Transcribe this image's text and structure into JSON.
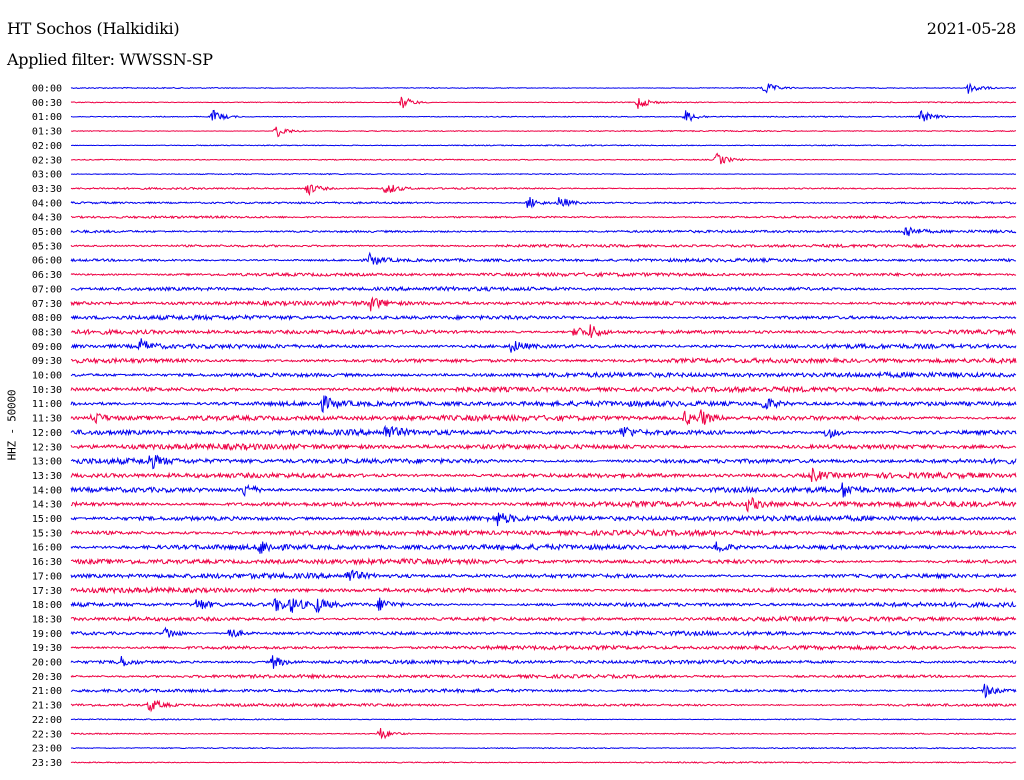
{
  "header": {
    "station": "HT Sochos (Halkidiki)",
    "date": "2021-05-28",
    "filter": "Applied filter: WWSSN-SP",
    "channel": "HHZ - 50000"
  },
  "colors": {
    "trace_a": "#0000ee",
    "trace_b": "#ee0044",
    "background": "#ffffff"
  },
  "chart_data": {
    "type": "line",
    "subtype": "helicorder",
    "ylabel": "HHZ - 50000",
    "row_interval_minutes": 30,
    "row_colors_alternate": [
      "blue",
      "red"
    ],
    "tick_labels": [
      "00:00",
      "00:30",
      "01:00",
      "01:30",
      "02:00",
      "02:30",
      "03:00",
      "03:30",
      "04:00",
      "04:30",
      "05:00",
      "05:30",
      "06:00",
      "06:30",
      "07:00",
      "07:30",
      "08:00",
      "08:30",
      "09:00",
      "09:30",
      "10:00",
      "10:30",
      "11:00",
      "11:30",
      "12:00",
      "12:30",
      "13:00",
      "13:30",
      "14:00",
      "14:30",
      "15:00",
      "15:30",
      "16:00",
      "16:30",
      "17:00",
      "17:30",
      "18:00",
      "18:30",
      "19:00",
      "19:30",
      "20:00",
      "20:30",
      "21:00",
      "21:30",
      "22:00",
      "22:30",
      "23:00",
      "23:30"
    ],
    "events_minute_of_row": {
      "00:00": [
        22,
        28.5
      ],
      "00:30": [
        10.5,
        18
      ],
      "01:00": [
        4.5,
        19.5,
        27
      ],
      "01:30": [
        6.5
      ],
      "02:30": [
        20.5
      ],
      "03:30": [
        7.5,
        10
      ],
      "04:00": [
        14.5,
        15.5
      ],
      "05:00": [
        26.5
      ],
      "06:00": [
        9.5
      ],
      "07:30": [
        9.5
      ],
      "08:30": [
        16,
        16.5
      ],
      "09:00": [
        2.2,
        14
      ],
      "11:00": [
        8,
        22
      ],
      "11:30": [
        0.7,
        19.5,
        20
      ],
      "12:00": [
        10,
        17.5,
        24
      ],
      "13:00": [
        2.5
      ],
      "13:30": [
        23.5
      ],
      "14:00": [
        5.5,
        24.5
      ],
      "14:30": [
        21.5
      ],
      "15:00": [
        13.5
      ],
      "16:00": [
        6,
        20.5
      ],
      "17:00": [
        8.8
      ],
      "18:00": [
        4,
        6.5,
        7,
        7.8,
        9.8
      ],
      "19:00": [
        3,
        5
      ],
      "20:00": [
        1.5,
        6.4
      ],
      "21:00": [
        29
      ],
      "21:30": [
        2.5
      ],
      "22:30": [
        9.8
      ]
    }
  }
}
